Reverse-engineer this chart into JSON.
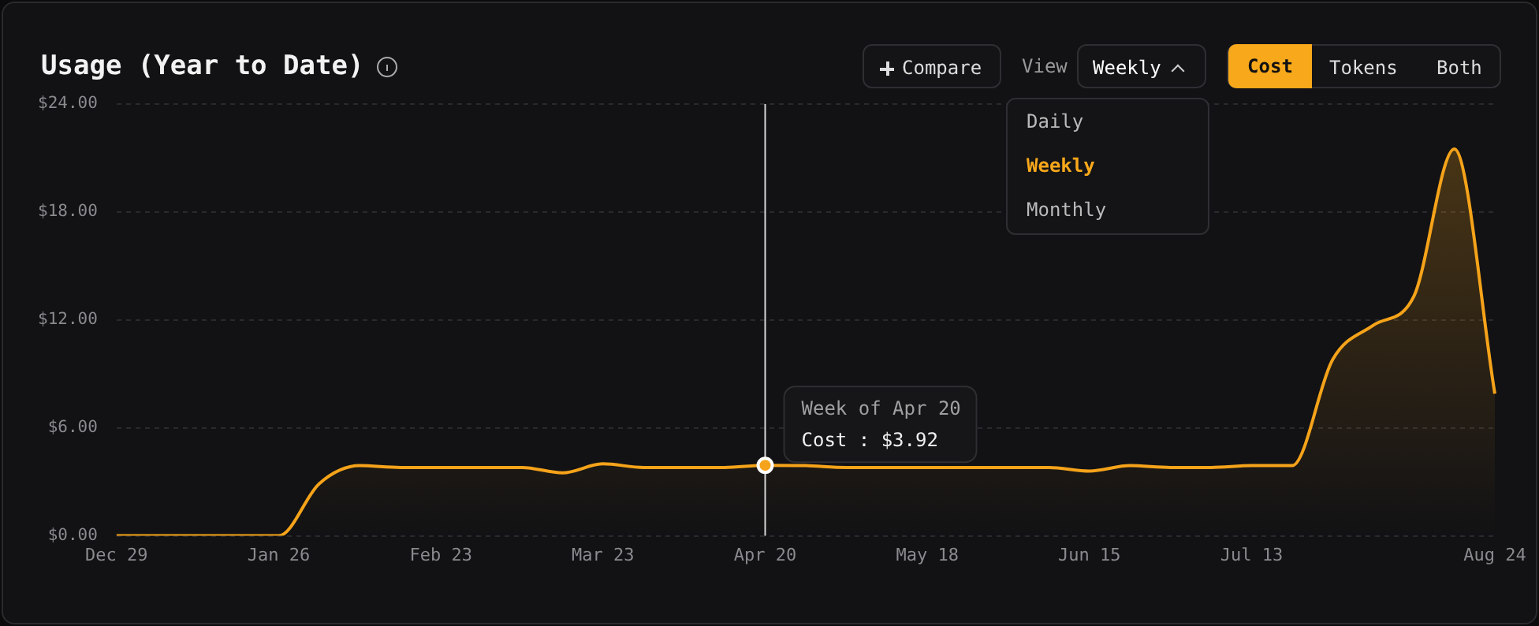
{
  "chart_data": {
    "type": "area",
    "title": "Usage (Year to Date)",
    "categories": [
      "Dec 29",
      null,
      null,
      null,
      "Jan 26",
      null,
      null,
      null,
      "Feb 23",
      null,
      null,
      null,
      "Mar 23",
      null,
      null,
      null,
      "Apr 20",
      null,
      null,
      null,
      "May 18",
      null,
      null,
      null,
      "Jun 15",
      null,
      null,
      null,
      "Jul 13",
      null,
      null,
      null,
      null,
      null,
      "Aug 24"
    ],
    "series": [
      {
        "color": "#f5a31a",
        "values": [
          0,
          0,
          0,
          0,
          0,
          2.9,
          3.9,
          3.8,
          3.8,
          3.8,
          3.8,
          3.5,
          4.0,
          3.8,
          3.8,
          3.8,
          3.92,
          3.9,
          3.8,
          3.8,
          3.8,
          3.8,
          3.8,
          3.8,
          3.6,
          3.9,
          3.8,
          3.8,
          3.9,
          3.9,
          9.8,
          11.7,
          13.3,
          21.5,
          7.9
        ]
      }
    ],
    "ylim": [
      0,
      24
    ],
    "yticks": [
      {
        "value": 0,
        "label": "$0.00"
      },
      {
        "value": 6,
        "label": "$6.00"
      },
      {
        "value": 12,
        "label": "$12.00"
      },
      {
        "value": 18,
        "label": "$18.00"
      },
      {
        "value": 24,
        "label": "$24.00"
      }
    ],
    "grid": "y",
    "legend": false,
    "marker": "none",
    "line_style": "solid",
    "annotations": [
      "Compare",
      "View",
      "Weekly",
      "Cost",
      "Tokens",
      "Both",
      "Daily",
      "Weekly",
      "Monthly",
      "Week of Apr 20",
      {
        "text": "Cost : $3.92",
        "x": "Apr 20",
        "y": 3.92
      }
    ]
  }
}
